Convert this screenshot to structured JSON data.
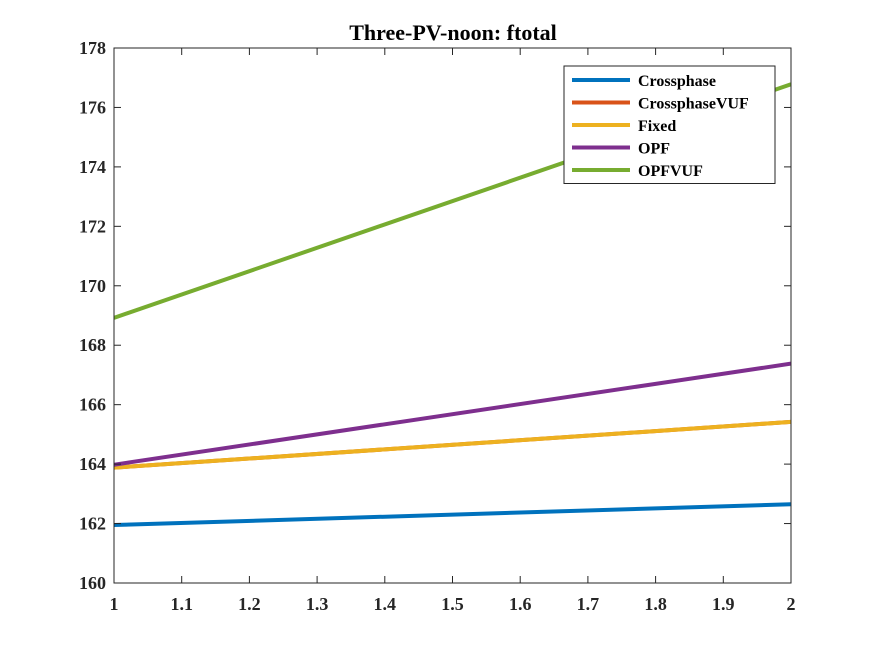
{
  "chart_data": {
    "type": "line",
    "title": "Three-PV-noon: ftotal",
    "xlabel": "",
    "ylabel": "",
    "xlim": [
      1,
      2
    ],
    "ylim": [
      160,
      178
    ],
    "x_ticks": [
      "1",
      "1.1",
      "1.2",
      "1.3",
      "1.4",
      "1.5",
      "1.6",
      "1.7",
      "1.8",
      "1.9",
      "2"
    ],
    "y_ticks": [
      "160",
      "162",
      "164",
      "166",
      "168",
      "170",
      "172",
      "174",
      "176",
      "178"
    ],
    "x": [
      1,
      2
    ],
    "grid": false,
    "legend_position": "top-right",
    "series": [
      {
        "name": "Crossphase",
        "color": "#0072BD",
        "values": [
          161.95,
          162.65
        ]
      },
      {
        "name": "CrossphaseVUF",
        "color": "#D95319",
        "values": [
          163.88,
          165.42
        ]
      },
      {
        "name": "Fixed",
        "color": "#EDB120",
        "values": [
          163.88,
          165.42
        ]
      },
      {
        "name": "OPF",
        "color": "#7E2F8E",
        "values": [
          163.98,
          167.38
        ]
      },
      {
        "name": "OPFVUF",
        "color": "#77AC30",
        "values": [
          168.92,
          176.78
        ]
      }
    ]
  }
}
